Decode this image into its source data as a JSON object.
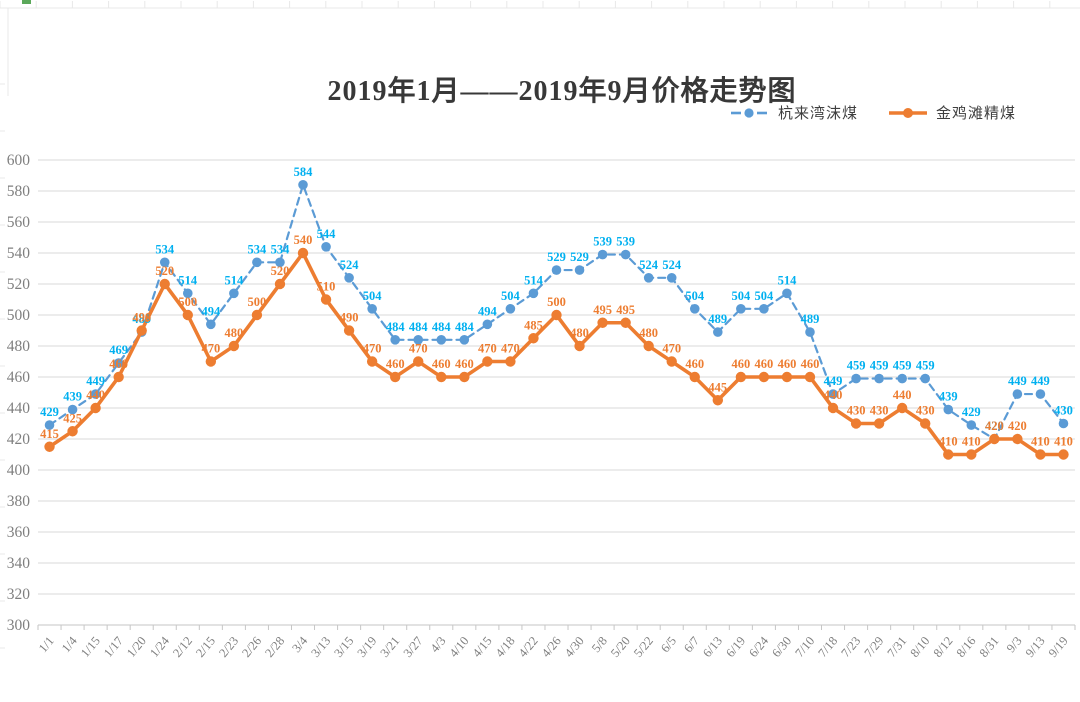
{
  "title": "2019年1月——2019年9月价格走势图",
  "legend": {
    "items": [
      {
        "label": "杭来湾沫煤",
        "color": "#5B9BD5",
        "style": "dashed"
      },
      {
        "label": "金鸡滩精煤",
        "color": "#ED7D31",
        "style": "solid"
      }
    ]
  },
  "chart_data": {
    "type": "line",
    "title": "2019年1月——2019年9月价格走势图",
    "categories": [
      "1/1",
      "1/4",
      "1/15",
      "1/17",
      "1/20",
      "1/24",
      "2/12",
      "2/15",
      "2/23",
      "2/26",
      "2/28",
      "3/4",
      "3/13",
      "3/15",
      "3/19",
      "3/21",
      "3/27",
      "4/3",
      "4/10",
      "4/15",
      "4/18",
      "4/22",
      "4/26",
      "4/30",
      "5/8",
      "5/20",
      "5/22",
      "6/5",
      "6/7",
      "6/13",
      "6/19",
      "6/24",
      "6/30",
      "7/10",
      "7/18",
      "7/23",
      "7/29",
      "7/31",
      "8/10",
      "8/12",
      "8/16",
      "8/31",
      "9/3",
      "9/13",
      "9/19"
    ],
    "series": [
      {
        "name": "杭来湾沫煤",
        "color": "#5B9BD5",
        "label_color": "#00B0F0",
        "line_style": "dashed",
        "marker": "circle",
        "values": [
          429,
          439,
          449,
          469,
          489,
          534,
          514,
          494,
          514,
          534,
          534,
          584,
          544,
          524,
          504,
          484,
          484,
          484,
          484,
          494,
          504,
          514,
          529,
          529,
          539,
          539,
          524,
          524,
          504,
          489,
          504,
          504,
          514,
          489,
          449,
          459,
          459,
          459,
          459,
          439,
          429,
          420,
          449,
          449,
          430
        ]
      },
      {
        "name": "金鸡滩精煤",
        "color": "#ED7D31",
        "label_color": "#ED7D31",
        "line_style": "solid",
        "marker": "circle",
        "values": [
          415,
          425,
          440,
          460,
          490,
          520,
          500,
          470,
          480,
          500,
          520,
          540,
          510,
          490,
          470,
          460,
          470,
          460,
          460,
          470,
          470,
          485,
          500,
          480,
          495,
          495,
          480,
          470,
          460,
          445,
          460,
          460,
          460,
          460,
          440,
          430,
          430,
          440,
          430,
          410,
          410,
          420,
          420,
          410,
          410
        ]
      }
    ],
    "ylim": [
      300,
      600
    ],
    "ytick_step": 20,
    "yticks": [
      300,
      320,
      340,
      360,
      380,
      400,
      420,
      440,
      460,
      480,
      500,
      520,
      540,
      560,
      580,
      600
    ],
    "grid": true,
    "data_labels": true,
    "legend_position": "top-right",
    "xlabel": "",
    "ylabel": ""
  },
  "colors": {
    "gridline": "#D9D9D9",
    "axis": "#C6C6C6",
    "axis_text": "#7F7F7F",
    "title_text": "#383838",
    "sheet_edge": "#E8E8E8",
    "sheet_mark_green": "#5BA85A"
  }
}
